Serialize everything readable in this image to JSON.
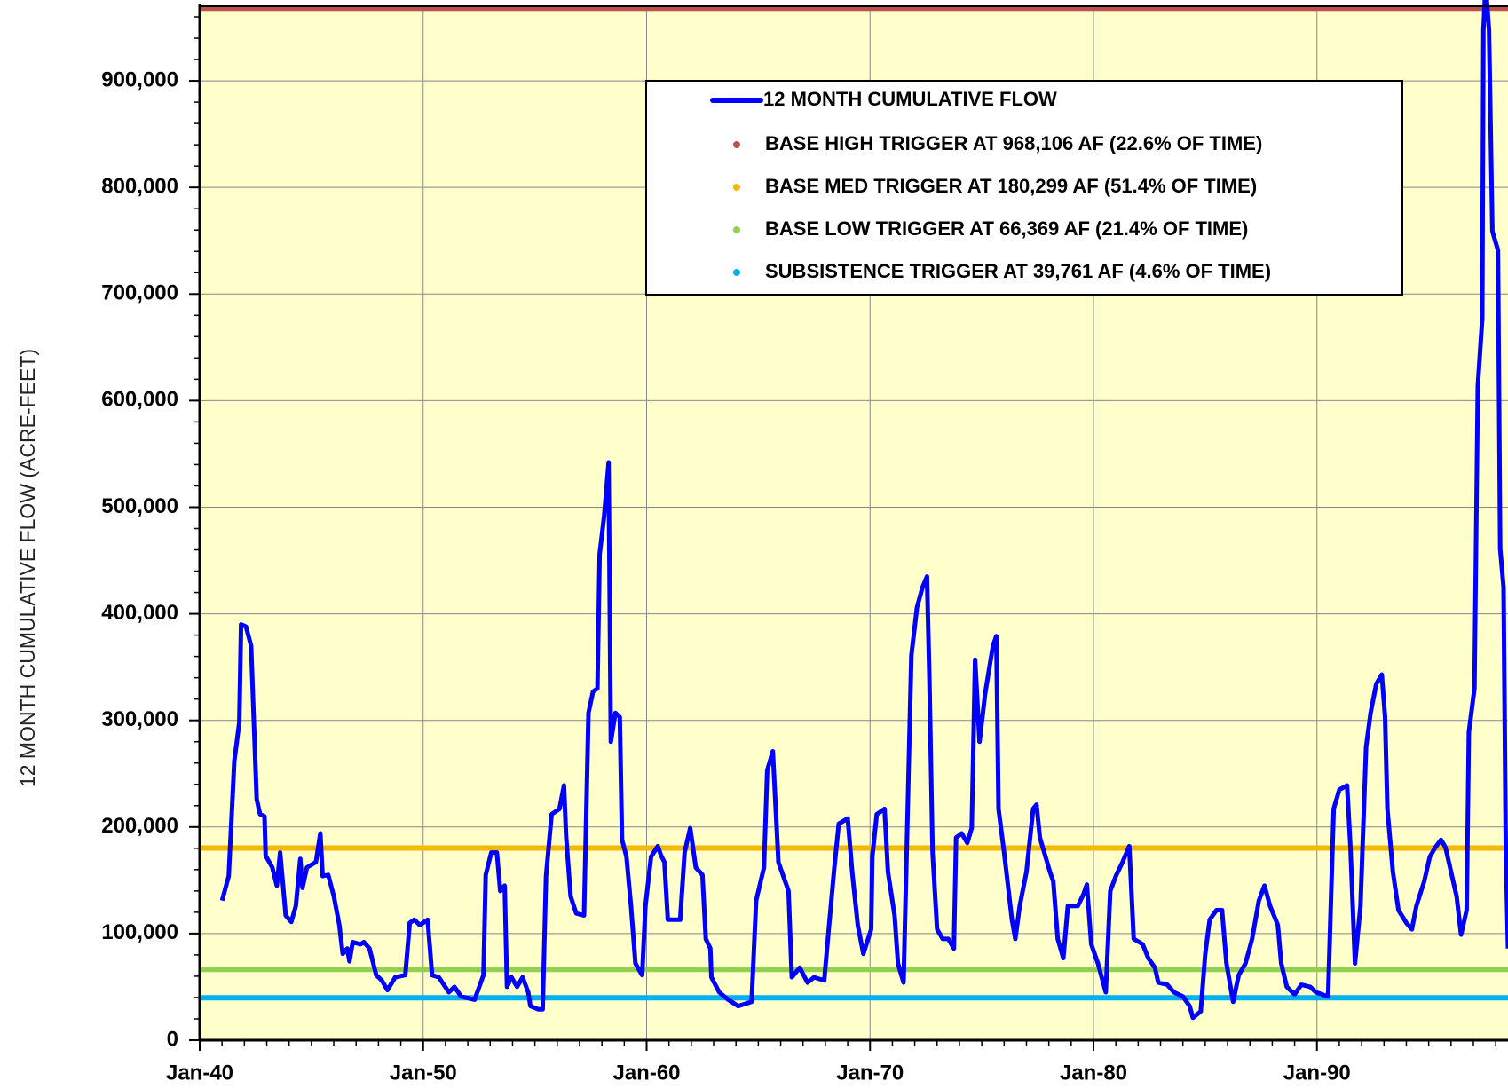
{
  "chart_data": {
    "type": "line",
    "y_label": "12 MONTH CUMULATIVE FLOW (ACRE-FEET)",
    "xlim": [
      1940,
      1998.55
    ],
    "xticks": [
      {
        "value": 1940,
        "label": "Jan-40"
      },
      {
        "value": 1950,
        "label": "Jan-50"
      },
      {
        "value": 1960,
        "label": "Jan-60"
      },
      {
        "value": 1970,
        "label": "Jan-70"
      },
      {
        "value": 1980,
        "label": "Jan-80"
      },
      {
        "value": 1990,
        "label": "Jan-90"
      }
    ],
    "ylim": [
      0,
      970000
    ],
    "yticks": [
      0,
      {
        "value": 100000,
        "label": "100,000"
      },
      {
        "value": 200000,
        "label": "200,000"
      },
      {
        "value": 300000,
        "label": "300,000"
      },
      {
        "value": 400000,
        "label": "400,000"
      },
      {
        "value": 500000,
        "label": "500,000"
      },
      {
        "value": 600000,
        "label": "600,000"
      },
      {
        "value": 700000,
        "label": "700,000"
      },
      {
        "value": 800000,
        "label": "800,000"
      },
      {
        "value": 900000,
        "label": "900,000"
      }
    ],
    "grid": true,
    "background": "#ffffcc",
    "series": [
      {
        "name": "12 MONTH CUMULATIVE FLOW",
        "color": "#0000ff",
        "x": [
          1941.0,
          1941.3,
          1941.55,
          1941.77,
          1941.85,
          1942.07,
          1942.3,
          1942.55,
          1942.7,
          1942.9,
          1942.95,
          1943.25,
          1943.45,
          1943.6,
          1943.85,
          1944.1,
          1944.3,
          1944.5,
          1944.6,
          1944.8,
          1945.2,
          1945.4,
          1945.5,
          1945.75,
          1946.0,
          1946.25,
          1946.4,
          1946.6,
          1946.7,
          1946.85,
          1947.2,
          1947.35,
          1947.6,
          1947.9,
          1948.15,
          1948.4,
          1948.75,
          1949.2,
          1949.4,
          1949.6,
          1949.85,
          1950.2,
          1950.4,
          1950.7,
          1951.15,
          1951.4,
          1951.7,
          1952.3,
          1952.7,
          1952.8,
          1953.05,
          1953.3,
          1953.45,
          1953.65,
          1953.75,
          1953.95,
          1954.2,
          1954.45,
          1954.7,
          1954.8,
          1955.15,
          1955.35,
          1955.5,
          1955.75,
          1956.1,
          1956.3,
          1956.4,
          1956.6,
          1956.85,
          1957.2,
          1957.4,
          1957.6,
          1957.8,
          1957.9,
          1958.1,
          1958.3,
          1958.4,
          1958.6,
          1958.8,
          1958.9,
          1959.1,
          1959.3,
          1959.5,
          1959.8,
          1959.95,
          1960.2,
          1960.5,
          1960.65,
          1960.8,
          1960.95,
          1961.25,
          1961.5,
          1961.7,
          1961.95,
          1962.2,
          1962.5,
          1962.65,
          1962.85,
          1962.9,
          1963.25,
          1963.65,
          1964.1,
          1964.7,
          1964.9,
          1965.25,
          1965.4,
          1965.65,
          1965.9,
          1966.35,
          1966.5,
          1966.85,
          1967.2,
          1967.5,
          1967.95,
          1968.15,
          1968.4,
          1968.6,
          1969.0,
          1969.2,
          1969.45,
          1969.7,
          1970.05,
          1970.1,
          1970.3,
          1970.65,
          1970.8,
          1971.1,
          1971.25,
          1971.5,
          1971.85,
          1972.1,
          1972.35,
          1972.55,
          1972.65,
          1972.8,
          1973.0,
          1973.25,
          1973.5,
          1973.75,
          1973.85,
          1974.1,
          1974.35,
          1974.55,
          1974.7,
          1974.9,
          1975.15,
          1975.5,
          1975.65,
          1975.75,
          1976.0,
          1976.35,
          1976.5,
          1976.7,
          1977.0,
          1977.3,
          1977.45,
          1977.6,
          1978.05,
          1978.2,
          1978.4,
          1978.65,
          1978.85,
          1979.3,
          1979.55,
          1979.7,
          1979.9,
          1980.2,
          1980.55,
          1980.75,
          1981.0,
          1981.3,
          1981.6,
          1981.8,
          1982.2,
          1982.45,
          1982.75,
          1982.9,
          1983.3,
          1983.6,
          1984.0,
          1984.3,
          1984.45,
          1984.8,
          1985.0,
          1985.2,
          1985.5,
          1985.75,
          1985.95,
          1986.25,
          1986.5,
          1986.8,
          1987.1,
          1987.4,
          1987.65,
          1987.9,
          1988.25,
          1988.4,
          1988.65,
          1989.0,
          1989.3,
          1989.7,
          1989.95,
          1990.5,
          1990.75,
          1991.0,
          1991.35,
          1991.5,
          1991.7,
          1991.95,
          1992.2,
          1992.4,
          1992.65,
          1992.9,
          1993.05,
          1993.15,
          1993.4,
          1993.65,
          1994.0,
          1994.25,
          1994.45,
          1994.8,
          1995.05,
          1995.3,
          1995.55,
          1995.75,
          1996.0,
          1996.25,
          1996.45,
          1996.7,
          1996.8,
          1997.05,
          1997.2,
          1997.4,
          1997.45,
          1997.55,
          1997.7,
          1997.85,
          1998.1,
          1998.2,
          1998.35,
          1998.45,
          1998.55
        ],
        "values": [
          131000,
          154000,
          262000,
          298000,
          390000,
          388000,
          370000,
          226000,
          212000,
          210000,
          173000,
          162000,
          145000,
          176000,
          117000,
          111000,
          126000,
          170000,
          143000,
          162000,
          167000,
          194000,
          154000,
          155000,
          135000,
          108000,
          81000,
          86000,
          74000,
          92000,
          90000,
          92000,
          86000,
          61000,
          56000,
          47000,
          59000,
          61000,
          110000,
          113000,
          108000,
          113000,
          61000,
          59000,
          45000,
          50000,
          41000,
          38000,
          61000,
          155000,
          176000,
          176000,
          140000,
          145000,
          50000,
          59000,
          50000,
          59000,
          45000,
          32000,
          29000,
          29000,
          154000,
          212000,
          217000,
          239000,
          190000,
          135000,
          119000,
          117000,
          307000,
          327000,
          330000,
          456000,
          492000,
          542000,
          280000,
          307000,
          303000,
          188000,
          172000,
          126000,
          72000,
          61000,
          126000,
          172000,
          182000,
          173000,
          167000,
          113000,
          113000,
          113000,
          176000,
          199000,
          162000,
          155000,
          95000,
          86000,
          59000,
          45000,
          38000,
          32000,
          36000,
          131000,
          162000,
          253000,
          271000,
          167000,
          140000,
          59000,
          68000,
          54000,
          59000,
          56000,
          104000,
          162000,
          203000,
          208000,
          158000,
          108000,
          81000,
          104000,
          172000,
          212000,
          217000,
          158000,
          117000,
          72000,
          54000,
          361000,
          406000,
          425000,
          435000,
          343000,
          176000,
          104000,
          95000,
          95000,
          86000,
          190000,
          194000,
          185000,
          199000,
          357000,
          280000,
          325000,
          370000,
          379000,
          217000,
          176000,
          113000,
          95000,
          126000,
          158000,
          217000,
          221000,
          190000,
          158000,
          149000,
          95000,
          77000,
          126000,
          126000,
          137000,
          146000,
          90000,
          72000,
          45000,
          140000,
          154000,
          167000,
          182000,
          95000,
          90000,
          77000,
          68000,
          54000,
          52000,
          45000,
          41000,
          32000,
          21000,
          27000,
          81000,
          113000,
          122000,
          122000,
          72000,
          36000,
          61000,
          72000,
          95000,
          131000,
          145000,
          126000,
          108000,
          72000,
          50000,
          43000,
          52000,
          50000,
          45000,
          41000,
          217000,
          235000,
          239000,
          181000,
          72000,
          126000,
          275000,
          307000,
          334000,
          343000,
          303000,
          217000,
          158000,
          122000,
          110000,
          104000,
          126000,
          149000,
          172000,
          181000,
          188000,
          181000,
          158000,
          135000,
          99000,
          122000,
          289000,
          330000,
          614000,
          677000,
          948000,
          990000,
          948000,
          759000,
          741000,
          461000,
          425000,
          181000,
          86000
        ]
      }
    ],
    "reference_lines": [
      {
        "name": "BASE HIGH TRIGGER AT 968,106 AF (22.6% OF TIME)",
        "value": 968106,
        "color": "#c0504d"
      },
      {
        "name": "BASE MED TRIGGER AT 180,299 AF (51.4% OF TIME)",
        "value": 180299,
        "color": "#f5b800"
      },
      {
        "name": "BASE LOW TRIGGER AT 66,369 AF (21.4% OF TIME)",
        "value": 66369,
        "color": "#92d050"
      },
      {
        "name": "SUBSISTENCE TRIGGER AT 39,761 AF (4.6% OF TIME)",
        "value": 39761,
        "color": "#00b0f0"
      }
    ]
  }
}
